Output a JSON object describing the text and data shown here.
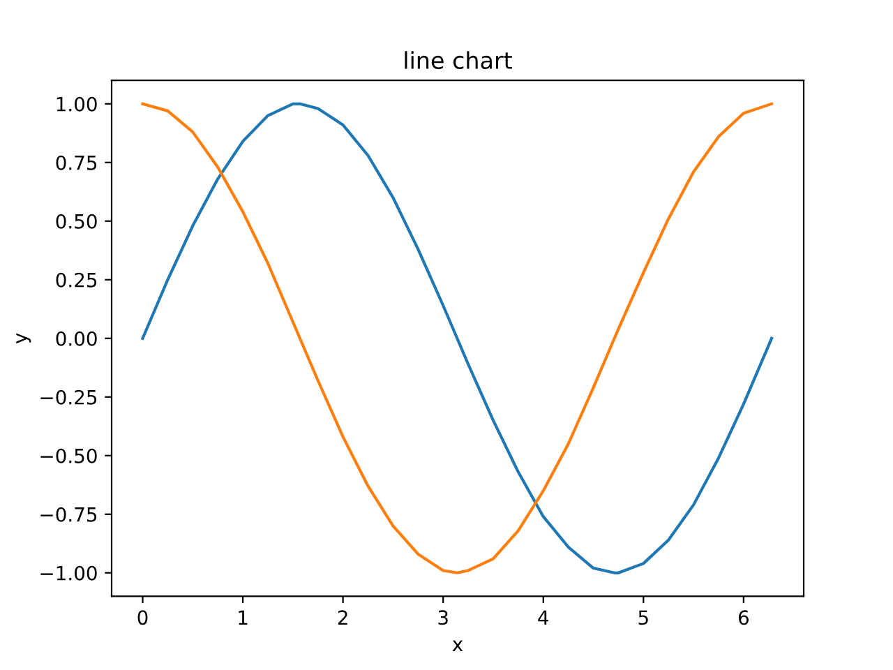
{
  "chart_data": {
    "type": "line",
    "title": "line chart",
    "xlabel": "x",
    "ylabel": "y",
    "x": [
      0,
      0.25,
      0.5,
      0.75,
      1.0,
      1.25,
      1.5,
      1.57,
      1.75,
      2.0,
      2.25,
      2.5,
      2.75,
      3.0,
      3.14,
      3.25,
      3.5,
      3.75,
      4.0,
      4.25,
      4.5,
      4.71,
      4.75,
      5.0,
      5.25,
      5.5,
      5.75,
      6.0,
      6.28
    ],
    "series": [
      {
        "color": "#1f77b4",
        "values": [
          0,
          0.25,
          0.48,
          0.68,
          0.84,
          0.95,
          1.0,
          1.0,
          0.98,
          0.91,
          0.78,
          0.6,
          0.38,
          0.14,
          0,
          -0.11,
          -0.35,
          -0.57,
          -0.76,
          -0.89,
          -0.98,
          -1.0,
          -1.0,
          -0.96,
          -0.86,
          -0.71,
          -0.51,
          -0.28,
          0
        ]
      },
      {
        "color": "#ff7f0e",
        "values": [
          1,
          0.97,
          0.88,
          0.73,
          0.54,
          0.32,
          0.07,
          0,
          -0.18,
          -0.42,
          -0.63,
          -0.8,
          -0.92,
          -0.99,
          -1.0,
          -0.99,
          -0.94,
          -0.82,
          -0.65,
          -0.45,
          -0.21,
          0,
          0.04,
          0.28,
          0.51,
          0.71,
          0.86,
          0.96,
          1
        ]
      }
    ],
    "xlim": [
      -0.31,
      6.6
    ],
    "ylim": [
      -1.1,
      1.1
    ],
    "xticks": [
      0,
      1,
      2,
      3,
      4,
      5,
      6
    ],
    "yticks": [
      {
        "value": -1,
        "label": "−1.00"
      },
      {
        "value": -0.75,
        "label": "−0.75"
      },
      {
        "value": -0.5,
        "label": "−0.50"
      },
      {
        "value": -0.25,
        "label": "−0.25"
      },
      {
        "value": 0,
        "label": "0.00"
      },
      {
        "value": 0.25,
        "label": "0.25"
      },
      {
        "value": 0.5,
        "label": "0.50"
      },
      {
        "value": 0.75,
        "label": "0.75"
      },
      {
        "value": 1,
        "label": "1.00"
      }
    ],
    "marker": "none",
    "line_style": "solid"
  }
}
